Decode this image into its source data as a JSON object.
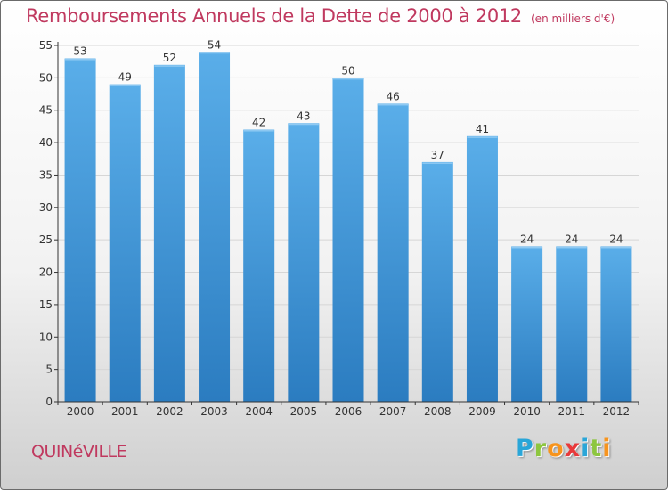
{
  "title": "Remboursements Annuels de la Dette de 2000 à 2012",
  "subtitle": "(en milliers d'€)",
  "commune": "QUINéVILLE",
  "brand": {
    "text": "Proxiti",
    "letters": [
      {
        "char": "P",
        "color": "#2aa6d8"
      },
      {
        "char": "r",
        "color": "#8dc63f"
      },
      {
        "char": "o",
        "color": "#f7941d"
      },
      {
        "char": "x",
        "color": "#e8393a"
      },
      {
        "char": "i",
        "color": "#2aa6d8"
      },
      {
        "char": "t",
        "color": "#8dc63f"
      },
      {
        "char": "i",
        "color": "#f7941d"
      }
    ]
  },
  "colors": {
    "title": "#c0395f",
    "bar_top": "#5aaee9",
    "bar_bottom": "#2b7cc0",
    "grid": "#d6d6d6",
    "axis": "#333333"
  },
  "chart_data": {
    "type": "bar",
    "title": "Remboursements Annuels de la Dette de 2000 à 2012",
    "subtitle": "(en milliers d'€)",
    "xlabel": "",
    "ylabel": "",
    "categories": [
      "2000",
      "2001",
      "2002",
      "2003",
      "2004",
      "2005",
      "2006",
      "2007",
      "2008",
      "2009",
      "2010",
      "2011",
      "2012"
    ],
    "values": [
      53,
      49,
      52,
      54,
      42,
      43,
      50,
      46,
      37,
      41,
      24,
      24,
      24
    ],
    "ylim": [
      0,
      55
    ],
    "yticks": [
      0,
      5,
      10,
      15,
      20,
      25,
      30,
      35,
      40,
      45,
      50,
      55
    ],
    "grid": true,
    "data_labels": true
  }
}
